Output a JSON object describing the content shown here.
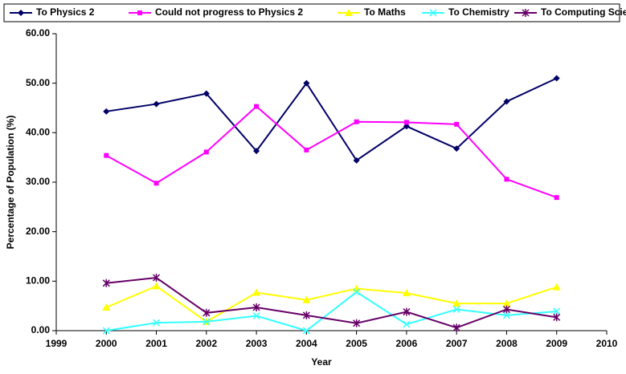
{
  "chart_data": {
    "type": "line",
    "x_label": "Year",
    "y_label": "Percentage of Population (%)",
    "x": [
      2000,
      2001,
      2002,
      2003,
      2004,
      2005,
      2006,
      2007,
      2008,
      2009
    ],
    "series": [
      {
        "name": "To Physics 2",
        "color": "#000066",
        "marker": "diamond",
        "values": [
          44.3,
          45.8,
          47.9,
          36.3,
          50.0,
          34.4,
          41.3,
          36.8,
          46.3,
          51.0
        ]
      },
      {
        "name": "Could not progress to Physics 2",
        "color": "#ff00ff",
        "marker": "square",
        "values": [
          35.4,
          29.8,
          36.1,
          45.3,
          36.5,
          42.2,
          42.1,
          41.7,
          30.6,
          26.9
        ]
      },
      {
        "name": "To Maths",
        "color": "#ffff00",
        "marker": "triangle",
        "values": [
          4.7,
          9.0,
          1.8,
          7.7,
          6.2,
          8.5,
          7.6,
          5.5,
          5.5,
          8.8
        ]
      },
      {
        "name": "To Chemistry",
        "color": "#33ffff",
        "marker": "x",
        "values": [
          0.0,
          1.6,
          1.8,
          3.0,
          0.0,
          7.8,
          1.3,
          4.3,
          3.1,
          3.9
        ]
      },
      {
        "name": "To Computing Science",
        "color": "#660066",
        "marker": "star",
        "values": [
          9.6,
          10.7,
          3.6,
          4.7,
          3.1,
          1.5,
          3.8,
          0.6,
          4.3,
          2.7
        ]
      }
    ],
    "xlim": [
      1999,
      2010
    ],
    "xticks": [
      1999,
      2000,
      2001,
      2002,
      2003,
      2004,
      2005,
      2006,
      2007,
      2008,
      2009,
      2010
    ],
    "ylim": [
      0,
      60
    ],
    "yticks": [
      {
        "value": 0,
        "label": "0.00"
      },
      {
        "value": 10,
        "label": "10.00"
      },
      {
        "value": 20,
        "label": "20.00"
      },
      {
        "value": 30,
        "label": "30.00"
      },
      {
        "value": 40,
        "label": "40.00"
      },
      {
        "value": 50,
        "label": "50.00"
      },
      {
        "value": 60,
        "label": "60.00"
      }
    ],
    "grid": false,
    "legend": "top"
  }
}
